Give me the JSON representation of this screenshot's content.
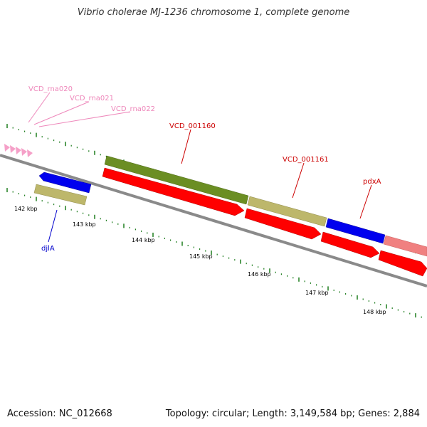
{
  "title": "Vibrio cholerae MJ-1236 chromosome 1, complete genome",
  "footer": {
    "accession": "Accession: NC_012668",
    "summary": "Topology: circular; Length: 3,149,584 bp; Genes: 2,884"
  },
  "colors": {
    "backbone": "#808080",
    "ruler": "#1e7d1e",
    "rna_label": "#ee88bb",
    "red_label": "#cc0000",
    "blue_label": "#0000cc"
  },
  "ruler": {
    "tick_labels": [
      "142 kbp",
      "143 kbp",
      "144 kbp",
      "145 kbp",
      "146 kbp",
      "147 kbp",
      "148 kbp"
    ]
  },
  "features": {
    "rna_labels": [
      "VCD_rna020",
      "VCD_rna021",
      "VCD_rna022"
    ],
    "gene_labels": {
      "vcd_001160": "VCD_001160",
      "vcd_001161": "VCD_001161",
      "pdxA": "pdxA",
      "djlA": "djlA"
    }
  }
}
